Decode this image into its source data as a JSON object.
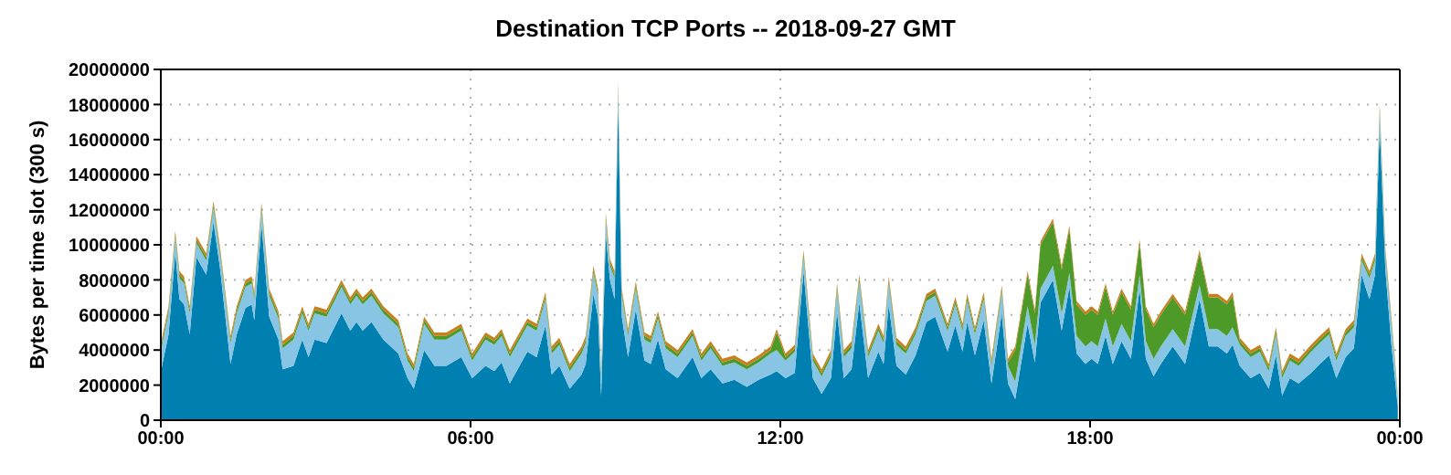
{
  "chart_data": {
    "type": "area",
    "stacked": true,
    "title": "Destination TCP Ports -- 2018-09-27 GMT",
    "ylabel": "Bytes per time slot (300 s)",
    "x": [
      0.01,
      0.15,
      0.28,
      0.36,
      0.45,
      0.56,
      0.69,
      0.88,
      1.02,
      1.15,
      1.35,
      1.47,
      1.64,
      1.76,
      1.81,
      1.95,
      2.1,
      2.28,
      2.36,
      2.57,
      2.74,
      2.86,
      2.98,
      3.21,
      3.33,
      3.5,
      3.67,
      3.79,
      3.91,
      4.08,
      4.31,
      4.6,
      4.78,
      4.9,
      5.1,
      5.3,
      5.53,
      5.82,
      6.03,
      6.29,
      6.46,
      6.6,
      6.76,
      7.1,
      7.28,
      7.45,
      7.57,
      7.72,
      7.92,
      8.15,
      8.23,
      8.38,
      8.47,
      8.53,
      8.62,
      8.7,
      8.79,
      8.86,
      8.93,
      9.05,
      9.2,
      9.37,
      9.49,
      9.63,
      9.78,
      10.01,
      10.3,
      10.47,
      10.65,
      10.88,
      11.11,
      11.35,
      11.58,
      11.81,
      11.93,
      12.1,
      12.28,
      12.45,
      12.63,
      12.8,
      12.98,
      13.1,
      13.23,
      13.38,
      13.53,
      13.7,
      13.9,
      14.0,
      14.1,
      14.25,
      14.43,
      14.62,
      14.83,
      15.0,
      15.24,
      15.39,
      15.53,
      15.62,
      15.77,
      15.94,
      16.09,
      16.29,
      16.41,
      16.55,
      16.79,
      16.93,
      17.04,
      17.28,
      17.45,
      17.6,
      17.74,
      17.91,
      18.03,
      18.15,
      18.3,
      18.44,
      18.61,
      18.79,
      18.96,
      19.08,
      19.23,
      19.37,
      19.6,
      19.84,
      20.12,
      20.3,
      20.47,
      20.65,
      20.76,
      20.9,
      21.11,
      21.29,
      21.46,
      21.6,
      21.72,
      21.87,
      22.04,
      22.28,
      22.45,
      22.63,
      22.77,
      22.95,
      23.11,
      23.26,
      23.41,
      23.52,
      23.61,
      23.72,
      23.84,
      23.96
    ],
    "series": [
      {
        "color": "#0080b0",
        "values": [
          2900000,
          4900000,
          9600000,
          6900000,
          6600000,
          4900000,
          9300000,
          8300000,
          11300000,
          8600000,
          3200000,
          4900000,
          6400000,
          6600000,
          5700000,
          11200000,
          5900000,
          4600000,
          2900000,
          3100000,
          4600000,
          3600000,
          4600000,
          4400000,
          5100000,
          6100000,
          5100000,
          5600000,
          5100000,
          5600000,
          4600000,
          3800000,
          2400000,
          1800000,
          4000000,
          3100000,
          3100000,
          3600000,
          2400000,
          3100000,
          2800000,
          3300000,
          2100000,
          3900000,
          3600000,
          5400000,
          2600000,
          3100000,
          1800000,
          2600000,
          3200000,
          7200000,
          5900000,
          1400000,
          10600000,
          8000000,
          6900000,
          18100000,
          5900000,
          3600000,
          6300000,
          3400000,
          3200000,
          4600000,
          2900000,
          2400000,
          3600000,
          2400000,
          2900000,
          2100000,
          2300000,
          1900000,
          2300000,
          2600000,
          2800000,
          2400000,
          2700000,
          8500000,
          2400000,
          1500000,
          2400000,
          6200000,
          2400000,
          2900000,
          6700000,
          2400000,
          3900000,
          3200000,
          6600000,
          3100000,
          2600000,
          3700000,
          5600000,
          5900000,
          3900000,
          5400000,
          3900000,
          5600000,
          3700000,
          5700000,
          2100000,
          6100000,
          2100000,
          1200000,
          5500000,
          3300000,
          6700000,
          8000000,
          5100000,
          7600000,
          3800000,
          3200000,
          3500000,
          3200000,
          4800000,
          3200000,
          4500000,
          3500000,
          7500000,
          3500000,
          2500000,
          3200000,
          4200000,
          3200000,
          6900000,
          4200000,
          4200000,
          3800000,
          4300000,
          3100000,
          2400000,
          2700000,
          1800000,
          3700000,
          1400000,
          2400000,
          2100000,
          2700000,
          3200000,
          3700000,
          2400000,
          3600000,
          4100000,
          8300000,
          6900000,
          8300000,
          16800000,
          8600000,
          4200000,
          800000
        ]
      },
      {
        "color": "#88c4e4",
        "values": [
          1200000,
          1200000,
          800000,
          1200000,
          1200000,
          1200000,
          800000,
          800000,
          800000,
          800000,
          1200000,
          1200000,
          1200000,
          1200000,
          1200000,
          800000,
          1200000,
          1200000,
          1200000,
          1500000,
          1500000,
          1500000,
          1500000,
          1500000,
          1500000,
          1500000,
          1500000,
          1500000,
          1500000,
          1500000,
          1500000,
          1500000,
          1000000,
          1000000,
          1500000,
          1500000,
          1500000,
          1500000,
          1000000,
          1500000,
          1500000,
          1500000,
          1500000,
          1500000,
          1500000,
          1500000,
          1200000,
          1200000,
          1000000,
          1200000,
          1200000,
          1200000,
          1200000,
          1000000,
          800000,
          800000,
          1200000,
          800000,
          1200000,
          1200000,
          1200000,
          1200000,
          1200000,
          1200000,
          1200000,
          1200000,
          1200000,
          1000000,
          1200000,
          1000000,
          1000000,
          1000000,
          1000000,
          1200000,
          1200000,
          1000000,
          1200000,
          800000,
          1000000,
          1000000,
          1200000,
          1200000,
          1200000,
          1200000,
          1200000,
          1200000,
          1200000,
          1200000,
          1200000,
          1200000,
          1200000,
          1200000,
          1200000,
          1200000,
          1200000,
          1200000,
          1200000,
          1200000,
          1200000,
          1200000,
          1000000,
          1200000,
          1000000,
          1000000,
          1000000,
          1000000,
          800000,
          800000,
          1000000,
          800000,
          1000000,
          1000000,
          1000000,
          1000000,
          1000000,
          1000000,
          1000000,
          1000000,
          800000,
          1000000,
          1000000,
          1000000,
          1000000,
          1000000,
          800000,
          1000000,
          1000000,
          1000000,
          1000000,
          1200000,
          1200000,
          1200000,
          1000000,
          1200000,
          1000000,
          1000000,
          1000000,
          1200000,
          1200000,
          1200000,
          1000000,
          1200000,
          1200000,
          800000,
          1200000,
          800000,
          800000,
          800000,
          1200000,
          500000
        ]
      },
      {
        "color": "#4e9a28",
        "values": [
          200000,
          200000,
          200000,
          200000,
          200000,
          200000,
          200000,
          200000,
          200000,
          200000,
          200000,
          200000,
          200000,
          200000,
          200000,
          200000,
          200000,
          200000,
          200000,
          200000,
          200000,
          200000,
          200000,
          200000,
          200000,
          200000,
          200000,
          200000,
          200000,
          200000,
          200000,
          200000,
          200000,
          200000,
          200000,
          200000,
          200000,
          200000,
          200000,
          200000,
          200000,
          200000,
          200000,
          200000,
          200000,
          200000,
          200000,
          200000,
          200000,
          200000,
          200000,
          200000,
          200000,
          200000,
          200000,
          200000,
          200000,
          200000,
          200000,
          200000,
          200000,
          200000,
          200000,
          200000,
          200000,
          200000,
          200000,
          200000,
          200000,
          200000,
          200000,
          200000,
          200000,
          200000,
          1000000,
          200000,
          200000,
          200000,
          200000,
          200000,
          200000,
          200000,
          200000,
          200000,
          200000,
          200000,
          200000,
          200000,
          200000,
          200000,
          200000,
          200000,
          200000,
          200000,
          200000,
          200000,
          200000,
          200000,
          200000,
          200000,
          200000,
          200000,
          200000,
          1800000,
          1800000,
          1800000,
          2500000,
          2500000,
          2500000,
          2500000,
          1800000,
          1800000,
          1800000,
          1800000,
          1800000,
          1800000,
          1800000,
          1800000,
          1800000,
          1800000,
          1800000,
          1800000,
          1800000,
          1800000,
          1800000,
          1800000,
          1800000,
          1800000,
          1800000,
          200000,
          200000,
          200000,
          200000,
          200000,
          200000,
          200000,
          200000,
          200000,
          200000,
          200000,
          200000,
          200000,
          200000,
          200000,
          200000,
          200000,
          200000,
          200000,
          200000,
          100000
        ]
      },
      {
        "color": "#c8801e",
        "values": [
          200000,
          200000,
          200000,
          200000,
          200000,
          200000,
          200000,
          200000,
          200000,
          200000,
          200000,
          200000,
          200000,
          200000,
          200000,
          200000,
          200000,
          200000,
          200000,
          200000,
          200000,
          200000,
          200000,
          200000,
          200000,
          200000,
          200000,
          200000,
          200000,
          200000,
          200000,
          200000,
          200000,
          200000,
          200000,
          200000,
          200000,
          200000,
          200000,
          200000,
          200000,
          200000,
          200000,
          200000,
          200000,
          200000,
          200000,
          200000,
          200000,
          200000,
          200000,
          200000,
          200000,
          200000,
          200000,
          200000,
          200000,
          200000,
          200000,
          200000,
          200000,
          200000,
          200000,
          200000,
          200000,
          200000,
          200000,
          200000,
          200000,
          200000,
          200000,
          200000,
          200000,
          200000,
          200000,
          200000,
          200000,
          200000,
          200000,
          200000,
          200000,
          200000,
          200000,
          200000,
          200000,
          200000,
          200000,
          200000,
          200000,
          200000,
          200000,
          200000,
          200000,
          200000,
          200000,
          200000,
          200000,
          200000,
          200000,
          200000,
          200000,
          200000,
          200000,
          200000,
          200000,
          200000,
          200000,
          200000,
          200000,
          200000,
          200000,
          200000,
          200000,
          200000,
          200000,
          200000,
          200000,
          200000,
          200000,
          200000,
          200000,
          200000,
          200000,
          200000,
          200000,
          200000,
          200000,
          200000,
          200000,
          200000,
          200000,
          200000,
          200000,
          200000,
          200000,
          200000,
          200000,
          200000,
          200000,
          200000,
          200000,
          200000,
          200000,
          200000,
          200000,
          200000,
          200000,
          200000,
          200000,
          100000
        ]
      }
    ],
    "xlim": [
      0,
      24
    ],
    "xticks": [
      {
        "value": 0,
        "label": "00:00"
      },
      {
        "value": 6,
        "label": "06:00"
      },
      {
        "value": 12,
        "label": "12:00"
      },
      {
        "value": 18,
        "label": "18:00"
      },
      {
        "value": 24,
        "label": "00:00"
      }
    ],
    "ylim": [
      0,
      20000000
    ],
    "yticks": [
      0,
      2000000,
      4000000,
      6000000,
      8000000,
      10000000,
      12000000,
      14000000,
      16000000,
      18000000,
      20000000
    ],
    "grid": true
  }
}
